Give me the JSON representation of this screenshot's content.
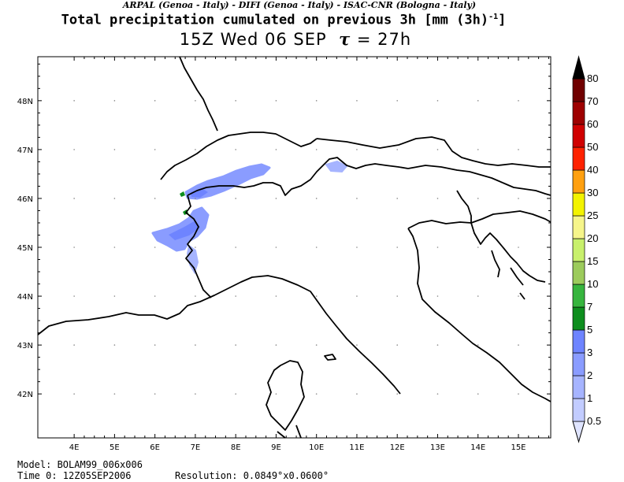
{
  "header": {
    "institutions": "ARPAL (Genoa - Italy)  -  DIFI (Genoa - Italy)  -  ISAC-CNR (Bologna - Italy)",
    "title": "Total precipitation cumulated on previous 3h [mm (3h)",
    "title_unit_exponent": "-1",
    "title_close": "]",
    "valid_time": "15Z Wed 06 SEP",
    "tau_symbol": "τ",
    "tau_value": "= 27h"
  },
  "map": {
    "lon_labels": [
      "4E",
      "5E",
      "6E",
      "7E",
      "8E",
      "9E",
      "10E",
      "11E",
      "12E",
      "13E",
      "14E",
      "15E"
    ],
    "lon_values": [
      4,
      5,
      6,
      7,
      8,
      9,
      10,
      11,
      12,
      13,
      14,
      15
    ],
    "lat_labels": [
      "42N",
      "43N",
      "44N",
      "45N",
      "46N",
      "47N",
      "48N"
    ],
    "lat_values": [
      42,
      43,
      44,
      45,
      46,
      47,
      48
    ],
    "lon_range": [
      3.1,
      15.8
    ],
    "lat_range": [
      41.1,
      48.9
    ],
    "coastline_color": "#000000"
  },
  "colorbar": {
    "labels": [
      "0.5",
      "1",
      "2",
      "3",
      "5",
      "7",
      "10",
      "15",
      "20",
      "25",
      "30",
      "40",
      "50",
      "60",
      "70",
      "80"
    ],
    "colors": [
      "#dfe4ff",
      "#c2ccff",
      "#a6b4ff",
      "#8a9cff",
      "#6e84ff",
      "#0e8e1e",
      "#37b53e",
      "#9ccb5c",
      "#c8f06c",
      "#f6f58a",
      "#f3f300",
      "#ffa010",
      "#fe2200",
      "#d00000",
      "#9e0000",
      "#700000",
      "#000000"
    ]
  },
  "footer": {
    "model": "Model: BOLAM99_006x006",
    "time0": "Time 0: 12Z05SEP2006",
    "resolution": "Resolution: 0.0849°x0.0600°"
  }
}
